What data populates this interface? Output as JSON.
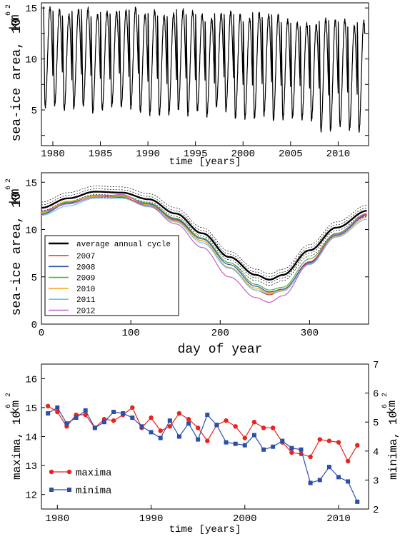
{
  "chart_data": [
    {
      "type": "line",
      "title": "",
      "xlabel": "time [years]",
      "ylabel": "sea-ice area, 10⁶ km²",
      "xlim": [
        1978.8,
        2013.2
      ],
      "ylim": [
        1.5,
        15.5
      ],
      "x_ticks": [
        1980,
        1985,
        1990,
        1995,
        2000,
        2005,
        2010
      ],
      "y_ticks": [
        5,
        10,
        15
      ],
      "annual_cycle": {
        "x": [
          1979,
          2012.8
        ],
        "maxima": [
          {
            "year": 1979,
            "value": 15.0
          },
          {
            "year": 1980,
            "value": 14.8
          },
          {
            "year": 1981,
            "value": 14.3
          },
          {
            "year": 1982,
            "value": 14.8
          },
          {
            "year": 1983,
            "value": 14.9
          },
          {
            "year": 1984,
            "value": 14.3
          },
          {
            "year": 1985,
            "value": 14.6
          },
          {
            "year": 1986,
            "value": 14.6
          },
          {
            "year": 1987,
            "value": 14.7
          },
          {
            "year": 1988,
            "value": 15.0
          },
          {
            "year": 1989,
            "value": 14.3
          },
          {
            "year": 1990,
            "value": 14.7
          },
          {
            "year": 1991,
            "value": 14.2
          },
          {
            "year": 1992,
            "value": 14.4
          },
          {
            "year": 1993,
            "value": 14.8
          },
          {
            "year": 1994,
            "value": 14.6
          },
          {
            "year": 1995,
            "value": 14.3
          },
          {
            "year": 1996,
            "value": 13.9
          },
          {
            "year": 1997,
            "value": 14.4
          },
          {
            "year": 1998,
            "value": 14.6
          },
          {
            "year": 1999,
            "value": 14.3
          },
          {
            "year": 2000,
            "value": 13.9
          },
          {
            "year": 2001,
            "value": 14.5
          },
          {
            "year": 2002,
            "value": 14.3
          },
          {
            "year": 2003,
            "value": 14.3
          },
          {
            "year": 2004,
            "value": 13.8
          },
          {
            "year": 2005,
            "value": 13.5
          },
          {
            "year": 2006,
            "value": 13.4
          },
          {
            "year": 2007,
            "value": 13.3
          },
          {
            "year": 2008,
            "value": 13.9
          },
          {
            "year": 2009,
            "value": 13.8
          },
          {
            "year": 2010,
            "value": 13.8
          },
          {
            "year": 2011,
            "value": 13.2
          },
          {
            "year": 2012,
            "value": 13.7
          }
        ],
        "minima": [
          {
            "year": 1979,
            "value": 5.3
          },
          {
            "year": 1980,
            "value": 5.5
          },
          {
            "year": 1981,
            "value": 5.0
          },
          {
            "year": 1982,
            "value": 5.2
          },
          {
            "year": 1983,
            "value": 5.4
          },
          {
            "year": 1984,
            "value": 4.8
          },
          {
            "year": 1985,
            "value": 5.0
          },
          {
            "year": 1986,
            "value": 5.4
          },
          {
            "year": 1987,
            "value": 5.3
          },
          {
            "year": 1988,
            "value": 5.2
          },
          {
            "year": 1989,
            "value": 4.8
          },
          {
            "year": 1990,
            "value": 4.6
          },
          {
            "year": 1991,
            "value": 4.5
          },
          {
            "year": 1992,
            "value": 4.6
          },
          {
            "year": 1993,
            "value": 5.0
          },
          {
            "year": 1994,
            "value": 4.5
          },
          {
            "year": 1995,
            "value": 4.9
          },
          {
            "year": 1996,
            "value": 4.4
          },
          {
            "year": 1997,
            "value": 5.3
          },
          {
            "year": 1998,
            "value": 4.9
          },
          {
            "year": 1999,
            "value": 4.2
          },
          {
            "year": 2000,
            "value": 4.2
          },
          {
            "year": 2001,
            "value": 4.2
          },
          {
            "year": 2002,
            "value": 4.5
          },
          {
            "year": 2003,
            "value": 4.0
          },
          {
            "year": 2004,
            "value": 4.1
          },
          {
            "year": 2005,
            "value": 4.3
          },
          {
            "year": 2006,
            "value": 4.1
          },
          {
            "year": 2007,
            "value": 4.0
          },
          {
            "year": 2008,
            "value": 2.9
          },
          {
            "year": 2009,
            "value": 3.0
          },
          {
            "year": 2010,
            "value": 3.4
          },
          {
            "year": 2011,
            "value": 3.1
          },
          {
            "year": 2012,
            "value": 2.9
          }
        ]
      },
      "colors": {
        "series": "#000000"
      }
    },
    {
      "type": "line",
      "title": "",
      "xlabel": "day of year",
      "ylabel": "sea-ice area, 10⁶ km²",
      "xlim": [
        0,
        366
      ],
      "ylim": [
        0,
        16
      ],
      "x_ticks": [
        0,
        100,
        200,
        300
      ],
      "y_ticks": [
        0,
        5,
        10,
        15
      ],
      "legend_position": "bottom-left",
      "average": {
        "name": "average annual cycle",
        "day": [
          0,
          30,
          60,
          90,
          120,
          150,
          180,
          210,
          240,
          255,
          270,
          300,
          330,
          365
        ],
        "value": [
          12.3,
          13.3,
          14.0,
          13.9,
          13.2,
          11.7,
          9.6,
          7.1,
          5.2,
          4.7,
          5.2,
          7.8,
          10.2,
          12.0
        ]
      },
      "series": [
        {
          "name": "2007",
          "color": "#e0341c",
          "day": [
            0,
            30,
            60,
            90,
            120,
            150,
            180,
            210,
            240,
            255,
            270,
            300,
            330,
            365
          ],
          "values": [
            11.9,
            12.9,
            13.5,
            13.4,
            12.5,
            11.0,
            8.8,
            6.0,
            3.6,
            3.1,
            3.6,
            6.6,
            9.6,
            11.6
          ]
        },
        {
          "name": "2008",
          "color": "#2a4fb5",
          "day": [
            0,
            30,
            60,
            90,
            120,
            150,
            180,
            210,
            240,
            255,
            270,
            300,
            330,
            365
          ],
          "values": [
            11.6,
            12.8,
            13.6,
            13.6,
            12.7,
            11.1,
            9.0,
            6.3,
            4.0,
            3.4,
            3.7,
            6.5,
            9.4,
            11.5
          ]
        },
        {
          "name": "2009",
          "color": "#4db33d",
          "day": [
            0,
            30,
            60,
            90,
            120,
            150,
            180,
            210,
            240,
            255,
            270,
            300,
            330,
            365
          ],
          "values": [
            11.7,
            12.9,
            13.6,
            13.5,
            12.8,
            11.2,
            9.1,
            6.5,
            4.2,
            3.6,
            3.9,
            6.9,
            9.6,
            11.7
          ]
        },
        {
          "name": "2010",
          "color": "#f5a623",
          "day": [
            0,
            30,
            60,
            90,
            120,
            150,
            180,
            210,
            240,
            255,
            270,
            300,
            330,
            365
          ],
          "values": [
            11.8,
            13.0,
            13.5,
            13.6,
            12.6,
            10.9,
            8.8,
            6.0,
            3.8,
            3.3,
            3.6,
            6.3,
            9.3,
            11.3
          ]
        },
        {
          "name": "2011",
          "color": "#6ec6e6",
          "day": [
            0,
            30,
            60,
            90,
            120,
            150,
            180,
            210,
            240,
            255,
            270,
            300,
            330,
            365
          ],
          "values": [
            11.5,
            12.5,
            13.3,
            13.3,
            12.4,
            10.8,
            8.6,
            5.9,
            3.6,
            3.2,
            3.5,
            6.3,
            9.2,
            11.1
          ]
        },
        {
          "name": "2012",
          "color": "#c061c9",
          "day": [
            0,
            30,
            60,
            90,
            120,
            150,
            180,
            210,
            240,
            255,
            270,
            300,
            330,
            365
          ],
          "values": [
            11.9,
            12.7,
            13.4,
            13.7,
            12.5,
            10.6,
            8.1,
            5.0,
            2.8,
            2.3,
            3.0,
            6.4,
            9.5,
            11.7
          ]
        }
      ]
    },
    {
      "type": "line",
      "title": "",
      "xlabel": "time [years]",
      "ylabel_left": "maxima, 10⁶ km²",
      "ylabel_right": "minima, 10⁶ km²",
      "xlim": [
        1978.3,
        2013.2
      ],
      "ylim_left": [
        11.5,
        16.5
      ],
      "ylim_right": [
        2,
        7
      ],
      "x_ticks": [
        1980,
        1990,
        2000,
        2010
      ],
      "y_ticks_left": [
        12,
        13,
        14,
        15,
        16
      ],
      "y_ticks_right": [
        2,
        3,
        4,
        5,
        6,
        7
      ],
      "legend_position": "bottom-left",
      "series": [
        {
          "name": "maxima",
          "color": "#e8231e",
          "marker": "circle",
          "axis": "left",
          "x": [
            1979,
            1980,
            1981,
            1982,
            1983,
            1984,
            1985,
            1986,
            1987,
            1988,
            1989,
            1990,
            1991,
            1992,
            1993,
            1994,
            1995,
            1996,
            1997,
            1998,
            1999,
            2000,
            2001,
            2002,
            2003,
            2004,
            2005,
            2006,
            2007,
            2008,
            2009,
            2010,
            2011,
            2012
          ],
          "values": [
            15.05,
            14.85,
            14.35,
            14.75,
            14.75,
            14.3,
            14.6,
            14.55,
            14.75,
            15.0,
            14.3,
            14.65,
            14.2,
            14.35,
            14.8,
            14.6,
            14.3,
            13.85,
            14.4,
            14.55,
            14.35,
            13.95,
            14.5,
            14.3,
            14.3,
            13.8,
            13.45,
            13.4,
            13.3,
            13.9,
            13.85,
            13.8,
            13.15,
            13.7
          ]
        },
        {
          "name": "minima",
          "color": "#2c4fa8",
          "marker": "square",
          "axis": "right",
          "x": [
            1979,
            1980,
            1981,
            1982,
            1983,
            1984,
            1985,
            1986,
            1987,
            1988,
            1989,
            1990,
            1991,
            1992,
            1993,
            1994,
            1995,
            1996,
            1997,
            1998,
            1999,
            2000,
            2001,
            2002,
            2003,
            2004,
            2005,
            2006,
            2007,
            2008,
            2009,
            2010,
            2011,
            2012
          ],
          "values": [
            5.3,
            5.5,
            4.95,
            5.15,
            5.4,
            4.8,
            5.0,
            5.35,
            5.3,
            5.15,
            4.85,
            4.65,
            4.45,
            5.05,
            4.5,
            4.95,
            4.4,
            5.25,
            4.9,
            4.3,
            4.25,
            4.2,
            4.55,
            4.05,
            4.15,
            4.35,
            4.1,
            4.05,
            2.9,
            3.0,
            3.45,
            3.1,
            2.95,
            2.25
          ]
        }
      ]
    }
  ],
  "panel1": {
    "xlabel": "time [years]",
    "ylabel": "sea-ice area, 10",
    "ylabel_unit": "km",
    "ylabel_exp6": "6",
    "ylabel_exp2": "2"
  },
  "panel2": {
    "xlabel": "day of year",
    "ylabel": "sea-ice area, 10",
    "ylabel_unit": "km",
    "ylabel_exp6": "6",
    "ylabel_exp2": "2"
  },
  "panel3": {
    "xlabel": "time [years]",
    "ylabel_left": "maxima, 10",
    "ylabel_right": "minima, 10",
    "ylabel_unit": "km",
    "ylabel_exp6": "6",
    "ylabel_exp2": "2"
  }
}
